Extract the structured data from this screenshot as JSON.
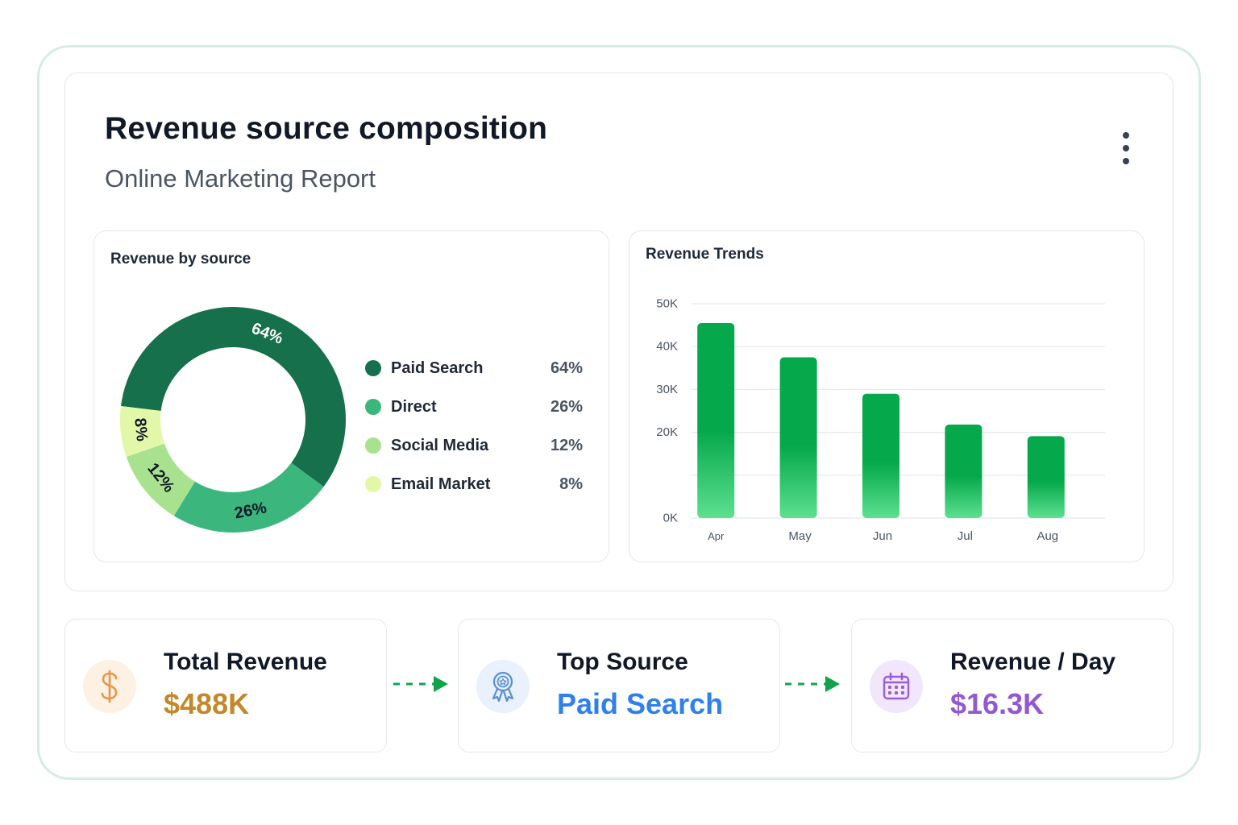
{
  "header": {
    "title": "Revenue source composition",
    "subtitle": "Online Marketing Report",
    "menu_icon": "kebab-menu-icon"
  },
  "chart_data": [
    {
      "type": "pie",
      "variant": "donut",
      "title": "Revenue by source",
      "categories": [
        "Paid Search",
        "Direct",
        "Social Media",
        "Email Market"
      ],
      "values": [
        64,
        26,
        12,
        8
      ],
      "value_labels": [
        "64%",
        "26%",
        "12%",
        "8%"
      ],
      "colors": [
        "#16704c",
        "#3bb77e",
        "#a8e28f",
        "#e2f8a8"
      ],
      "legend": "right"
    },
    {
      "type": "bar",
      "title": "Revenue Trends",
      "categories": [
        "Apr",
        "May",
        "Jun",
        "Jul",
        "Aug"
      ],
      "values": [
        45500,
        37500,
        29000,
        21800,
        19100
      ],
      "ylim": [
        0,
        50000
      ],
      "yticks": [
        0,
        10000,
        20000,
        30000,
        40000,
        50000
      ],
      "ytick_labels": [
        "0K",
        "",
        "20K",
        "30K",
        "40K",
        "50K"
      ],
      "grid": true,
      "bar_color": "#05a84b",
      "bar_color_light": "#5de08f"
    }
  ],
  "kpis": [
    {
      "label": "Total Revenue",
      "value": "$488K",
      "icon": "dollar-icon",
      "accent": "#c3882b",
      "icon_bg": "#fdf1e3"
    },
    {
      "label": "Top Source",
      "value": "Paid Search",
      "icon": "award-ribbon-icon",
      "accent": "#2f80ed",
      "icon_bg": "#e8f1fc"
    },
    {
      "label": "Revenue / Day",
      "value": "$16.3K",
      "icon": "calendar-icon",
      "accent": "#9459cf",
      "icon_bg": "#f1e6fb"
    }
  ],
  "arrow_color": "#12a34a"
}
